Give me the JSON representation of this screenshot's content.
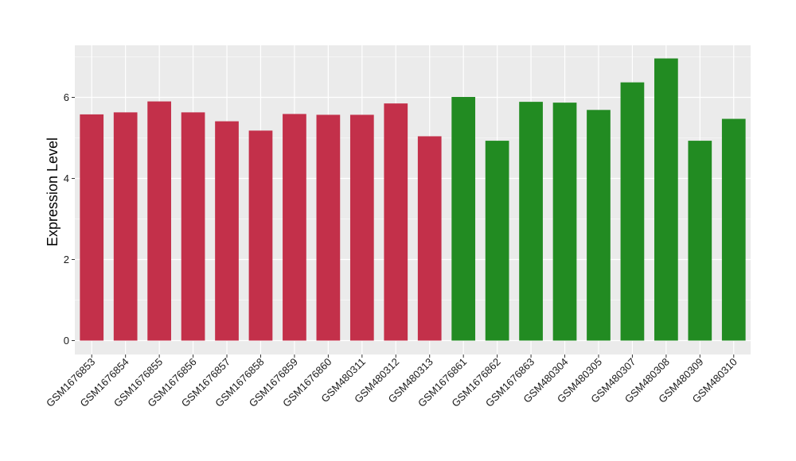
{
  "chart_data": {
    "type": "bar",
    "title": "",
    "xlabel": "",
    "ylabel": "Expression Level",
    "ylim": [
      0,
      7
    ],
    "yticks": [
      0,
      2,
      4,
      6
    ],
    "grid": true,
    "legend": "none",
    "colors": {
      "group_a": "#c3304a",
      "group_b": "#228b22",
      "panel_bg": "#ebebeb",
      "grid": "#ffffff"
    },
    "categories": [
      "GSM1676853",
      "GSM1676854",
      "GSM1676855",
      "GSM1676856",
      "GSM1676857",
      "GSM1676858",
      "GSM1676859",
      "GSM1676860",
      "GSM480311",
      "GSM480312",
      "GSM480313",
      "GSM1676861",
      "GSM1676862",
      "GSM1676863",
      "GSM480304",
      "GSM480305",
      "GSM480307",
      "GSM480308",
      "GSM480309",
      "GSM480310"
    ],
    "values": [
      5.58,
      5.63,
      5.9,
      5.63,
      5.41,
      5.18,
      5.59,
      5.57,
      5.57,
      5.85,
      5.04,
      6.01,
      4.93,
      5.89,
      5.87,
      5.69,
      6.37,
      6.96,
      4.93,
      5.47
    ],
    "groups": [
      "a",
      "a",
      "a",
      "a",
      "a",
      "a",
      "a",
      "a",
      "a",
      "a",
      "a",
      "b",
      "b",
      "b",
      "b",
      "b",
      "b",
      "b",
      "b",
      "b"
    ]
  }
}
